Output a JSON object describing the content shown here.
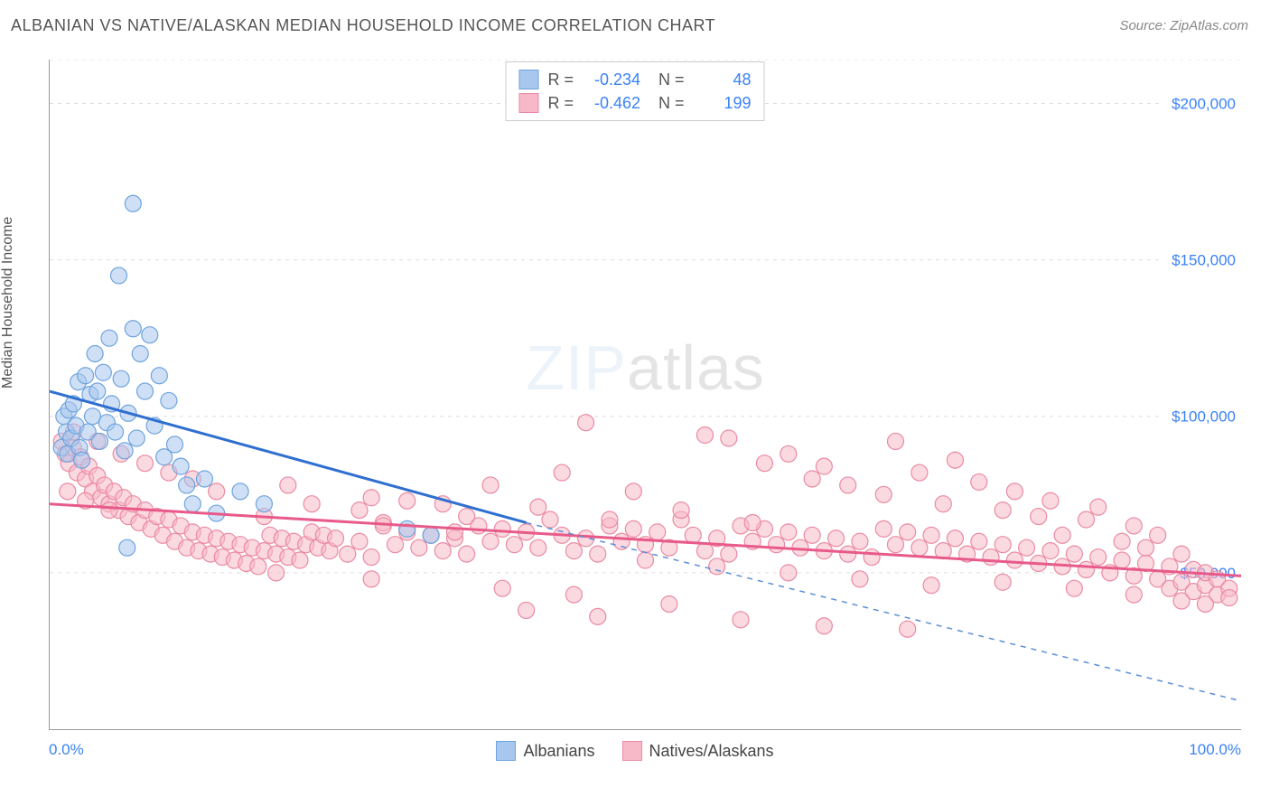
{
  "title": "ALBANIAN VS NATIVE/ALASKAN MEDIAN HOUSEHOLD INCOME CORRELATION CHART",
  "source": "Source: ZipAtlas.com",
  "ylabel": "Median Household Income",
  "watermark": {
    "prefix": "ZIP",
    "suffix": "atlas"
  },
  "chart": {
    "type": "scatter",
    "xlim": [
      0,
      100
    ],
    "ylim": [
      0,
      214000
    ],
    "x_ticks_pct": [
      0,
      10,
      20,
      30,
      40,
      50,
      60,
      70,
      80,
      90,
      100
    ],
    "x_tick_labels": {
      "0": "0.0%",
      "100": "100.0%"
    },
    "y_gridlines": [
      50000,
      100000,
      150000,
      200000,
      214000
    ],
    "y_tick_labels": {
      "50000": "$50,000",
      "100000": "$100,000",
      "150000": "$150,000",
      "200000": "$200,000"
    },
    "background_color": "#ffffff",
    "grid_color": "#dddddd",
    "axis_color": "#999999",
    "marker_radius": 9,
    "marker_stroke_width": 1.2,
    "line_width": 3
  },
  "series": [
    {
      "key": "albanians",
      "label": "Albanians",
      "fill": "#a7c7ee",
      "fill_opacity": 0.55,
      "stroke": "#6ea4dd",
      "line_color": "#2f6fd0",
      "dash_color": "#5a8fd6",
      "R": "-0.234",
      "N": "48",
      "trend": {
        "x1": 0,
        "y1": 108000,
        "x2": 40,
        "y2": 66000,
        "x2_ext": 100,
        "y2_ext": 9000
      },
      "points": [
        [
          1.0,
          90000
        ],
        [
          1.2,
          100000
        ],
        [
          1.4,
          95000
        ],
        [
          1.5,
          88000
        ],
        [
          1.6,
          102000
        ],
        [
          1.8,
          93000
        ],
        [
          2.0,
          104000
        ],
        [
          2.2,
          97000
        ],
        [
          2.4,
          111000
        ],
        [
          2.5,
          90000
        ],
        [
          2.7,
          86000
        ],
        [
          3.0,
          113000
        ],
        [
          3.2,
          95000
        ],
        [
          3.4,
          107000
        ],
        [
          3.6,
          100000
        ],
        [
          3.8,
          120000
        ],
        [
          4.0,
          108000
        ],
        [
          4.2,
          92000
        ],
        [
          4.5,
          114000
        ],
        [
          4.8,
          98000
        ],
        [
          5.0,
          125000
        ],
        [
          5.2,
          104000
        ],
        [
          5.5,
          95000
        ],
        [
          5.8,
          145000
        ],
        [
          6.0,
          112000
        ],
        [
          6.3,
          89000
        ],
        [
          6.6,
          101000
        ],
        [
          7.0,
          128000
        ],
        [
          7.3,
          93000
        ],
        [
          7.6,
          120000
        ],
        [
          8.0,
          108000
        ],
        [
          8.4,
          126000
        ],
        [
          7.0,
          168000
        ],
        [
          8.8,
          97000
        ],
        [
          9.2,
          113000
        ],
        [
          9.6,
          87000
        ],
        [
          10.0,
          105000
        ],
        [
          10.5,
          91000
        ],
        [
          11.0,
          84000
        ],
        [
          11.5,
          78000
        ],
        [
          12.0,
          72000
        ],
        [
          13.0,
          80000
        ],
        [
          14.0,
          69000
        ],
        [
          16.0,
          76000
        ],
        [
          18.0,
          72000
        ],
        [
          6.5,
          58000
        ],
        [
          30.0,
          64000
        ],
        [
          32.0,
          62000
        ]
      ]
    },
    {
      "key": "natives",
      "label": "Natives/Alaskans",
      "fill": "#f7b9c7",
      "fill_opacity": 0.55,
      "stroke": "#ea8aa3",
      "line_color": "#e85a8a",
      "R": "-0.462",
      "N": "199",
      "trend": {
        "x1": 0,
        "y1": 72000,
        "x2": 100,
        "y2": 49000
      },
      "points": [
        [
          1,
          92000
        ],
        [
          1.3,
          88000
        ],
        [
          1.6,
          85000
        ],
        [
          2,
          90000
        ],
        [
          2.3,
          82000
        ],
        [
          2.6,
          87000
        ],
        [
          3,
          80000
        ],
        [
          3.3,
          84000
        ],
        [
          3.6,
          76000
        ],
        [
          4,
          81000
        ],
        [
          4.3,
          74000
        ],
        [
          4.6,
          78000
        ],
        [
          5,
          72000
        ],
        [
          5.4,
          76000
        ],
        [
          5.8,
          70000
        ],
        [
          6.2,
          74000
        ],
        [
          6.6,
          68000
        ],
        [
          7,
          72000
        ],
        [
          7.5,
          66000
        ],
        [
          8,
          70000
        ],
        [
          8.5,
          64000
        ],
        [
          9,
          68000
        ],
        [
          9.5,
          62000
        ],
        [
          10,
          67000
        ],
        [
          10.5,
          60000
        ],
        [
          11,
          65000
        ],
        [
          11.5,
          58000
        ],
        [
          12,
          63000
        ],
        [
          12.5,
          57000
        ],
        [
          13,
          62000
        ],
        [
          13.5,
          56000
        ],
        [
          14,
          61000
        ],
        [
          14.5,
          55000
        ],
        [
          15,
          60000
        ],
        [
          15.5,
          54000
        ],
        [
          16,
          59000
        ],
        [
          16.5,
          53000
        ],
        [
          17,
          58000
        ],
        [
          17.5,
          52000
        ],
        [
          18,
          57000
        ],
        [
          18.5,
          62000
        ],
        [
          19,
          56000
        ],
        [
          19.5,
          61000
        ],
        [
          20,
          55000
        ],
        [
          20.5,
          60000
        ],
        [
          21,
          54000
        ],
        [
          21.5,
          59000
        ],
        [
          22,
          63000
        ],
        [
          22.5,
          58000
        ],
        [
          23,
          62000
        ],
        [
          23.5,
          57000
        ],
        [
          24,
          61000
        ],
        [
          25,
          56000
        ],
        [
          26,
          60000
        ],
        [
          27,
          55000
        ],
        [
          28,
          66000
        ],
        [
          29,
          59000
        ],
        [
          30,
          63000
        ],
        [
          31,
          58000
        ],
        [
          32,
          62000
        ],
        [
          33,
          57000
        ],
        [
          34,
          61000
        ],
        [
          35,
          56000
        ],
        [
          36,
          65000
        ],
        [
          37,
          60000
        ],
        [
          38,
          64000
        ],
        [
          39,
          59000
        ],
        [
          40,
          63000
        ],
        [
          41,
          58000
        ],
        [
          42,
          67000
        ],
        [
          43,
          62000
        ],
        [
          44,
          57000
        ],
        [
          45,
          61000
        ],
        [
          45,
          98000
        ],
        [
          46,
          56000
        ],
        [
          47,
          65000
        ],
        [
          48,
          60000
        ],
        [
          49,
          64000
        ],
        [
          50,
          59000
        ],
        [
          51,
          63000
        ],
        [
          52,
          58000
        ],
        [
          53,
          67000
        ],
        [
          54,
          62000
        ],
        [
          55,
          57000
        ],
        [
          55,
          94000
        ],
        [
          56,
          61000
        ],
        [
          57,
          56000
        ],
        [
          57,
          93000
        ],
        [
          58,
          65000
        ],
        [
          59,
          60000
        ],
        [
          60,
          64000
        ],
        [
          60,
          85000
        ],
        [
          61,
          59000
        ],
        [
          62,
          63000
        ],
        [
          62,
          88000
        ],
        [
          63,
          58000
        ],
        [
          64,
          62000
        ],
        [
          64,
          80000
        ],
        [
          65,
          57000
        ],
        [
          65,
          84000
        ],
        [
          66,
          61000
        ],
        [
          67,
          56000
        ],
        [
          67,
          78000
        ],
        [
          68,
          60000
        ],
        [
          69,
          55000
        ],
        [
          70,
          64000
        ],
        [
          70,
          75000
        ],
        [
          71,
          59000
        ],
        [
          71,
          92000
        ],
        [
          72,
          63000
        ],
        [
          73,
          58000
        ],
        [
          73,
          82000
        ],
        [
          74,
          62000
        ],
        [
          75,
          57000
        ],
        [
          75,
          72000
        ],
        [
          76,
          61000
        ],
        [
          76,
          86000
        ],
        [
          77,
          56000
        ],
        [
          78,
          60000
        ],
        [
          78,
          79000
        ],
        [
          79,
          55000
        ],
        [
          80,
          59000
        ],
        [
          80,
          70000
        ],
        [
          81,
          54000
        ],
        [
          81,
          76000
        ],
        [
          82,
          58000
        ],
        [
          83,
          53000
        ],
        [
          83,
          68000
        ],
        [
          84,
          57000
        ],
        [
          84,
          73000
        ],
        [
          85,
          52000
        ],
        [
          85,
          62000
        ],
        [
          86,
          56000
        ],
        [
          87,
          51000
        ],
        [
          87,
          67000
        ],
        [
          88,
          55000
        ],
        [
          88,
          71000
        ],
        [
          89,
          50000
        ],
        [
          90,
          54000
        ],
        [
          90,
          60000
        ],
        [
          91,
          49000
        ],
        [
          91,
          65000
        ],
        [
          92,
          53000
        ],
        [
          92,
          58000
        ],
        [
          93,
          48000
        ],
        [
          93,
          62000
        ],
        [
          94,
          52000
        ],
        [
          94,
          45000
        ],
        [
          95,
          47000
        ],
        [
          95,
          56000
        ],
        [
          96,
          51000
        ],
        [
          96,
          44000
        ],
        [
          97,
          46000
        ],
        [
          97,
          50000
        ],
        [
          98,
          43000
        ],
        [
          98,
          48000
        ],
        [
          99,
          45000
        ],
        [
          99,
          42000
        ],
        [
          14,
          76000
        ],
        [
          20,
          78000
        ],
        [
          27,
          74000
        ],
        [
          33,
          72000
        ],
        [
          40,
          38000
        ],
        [
          46,
          36000
        ],
        [
          52,
          40000
        ],
        [
          58,
          35000
        ],
        [
          65,
          33000
        ],
        [
          72,
          32000
        ],
        [
          37,
          78000
        ],
        [
          43,
          82000
        ],
        [
          49,
          76000
        ],
        [
          2,
          95000
        ],
        [
          4,
          92000
        ],
        [
          6,
          88000
        ],
        [
          8,
          85000
        ],
        [
          10,
          82000
        ],
        [
          12,
          80000
        ],
        [
          26,
          70000
        ],
        [
          30,
          73000
        ],
        [
          35,
          68000
        ],
        [
          41,
          71000
        ],
        [
          47,
          67000
        ],
        [
          53,
          70000
        ],
        [
          59,
          66000
        ],
        [
          18,
          68000
        ],
        [
          22,
          72000
        ],
        [
          28,
          65000
        ],
        [
          34,
          63000
        ],
        [
          50,
          54000
        ],
        [
          56,
          52000
        ],
        [
          62,
          50000
        ],
        [
          68,
          48000
        ],
        [
          74,
          46000
        ],
        [
          80,
          47000
        ],
        [
          86,
          45000
        ],
        [
          91,
          43000
        ],
        [
          95,
          41000
        ],
        [
          97,
          40000
        ],
        [
          38,
          45000
        ],
        [
          44,
          43000
        ],
        [
          27,
          48000
        ],
        [
          19,
          50000
        ],
        [
          1.5,
          76000
        ],
        [
          3,
          73000
        ],
        [
          5,
          70000
        ]
      ]
    }
  ]
}
